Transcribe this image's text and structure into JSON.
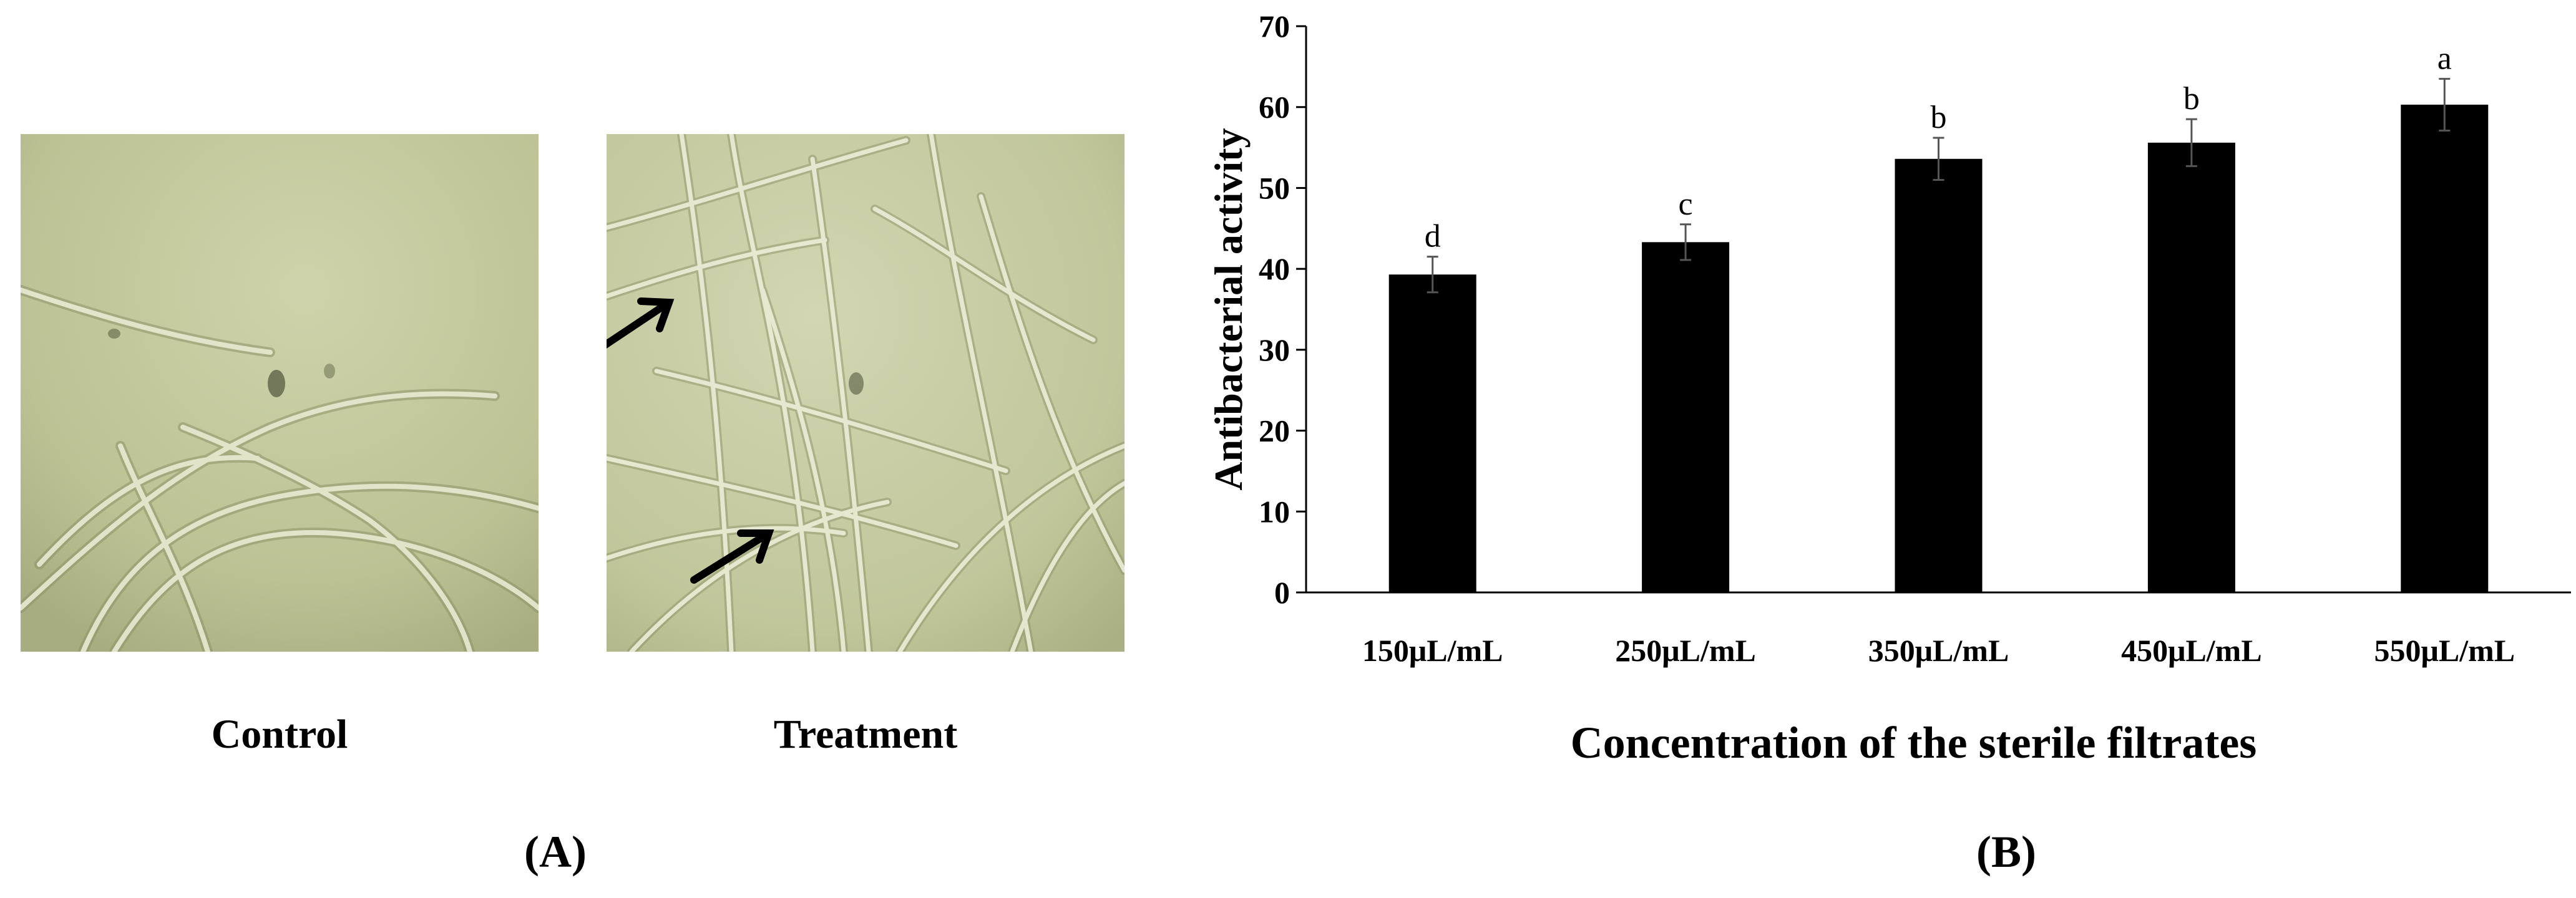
{
  "panel_a": {
    "panel_label": "(A)",
    "images": [
      {
        "caption": "Control",
        "image": "micrograph-control"
      },
      {
        "caption": "Treatment",
        "image": "micrograph-treatment"
      }
    ],
    "background_color": "#c5caa0"
  },
  "panel_b": {
    "panel_label": "(B)"
  },
  "chart_data": {
    "type": "bar",
    "categories": [
      "150μL/mL",
      "250μL/mL",
      "350μL/mL",
      "450μL/mL",
      "550μL/mL"
    ],
    "values": [
      39.3,
      43.3,
      53.6,
      55.6,
      60.3
    ],
    "errors": [
      2.2,
      2.2,
      2.6,
      2.9,
      3.2
    ],
    "significance_letters": [
      "d",
      "c",
      "b",
      "b",
      "a"
    ],
    "title": "",
    "xlabel": "Concentration of the sterile filtrates",
    "ylabel": "Antibacterial activity",
    "ylim": [
      0,
      70
    ],
    "yticks": [
      0,
      10,
      20,
      30,
      40,
      50,
      60,
      70
    ],
    "grid": false,
    "bar_color": "#000000"
  }
}
